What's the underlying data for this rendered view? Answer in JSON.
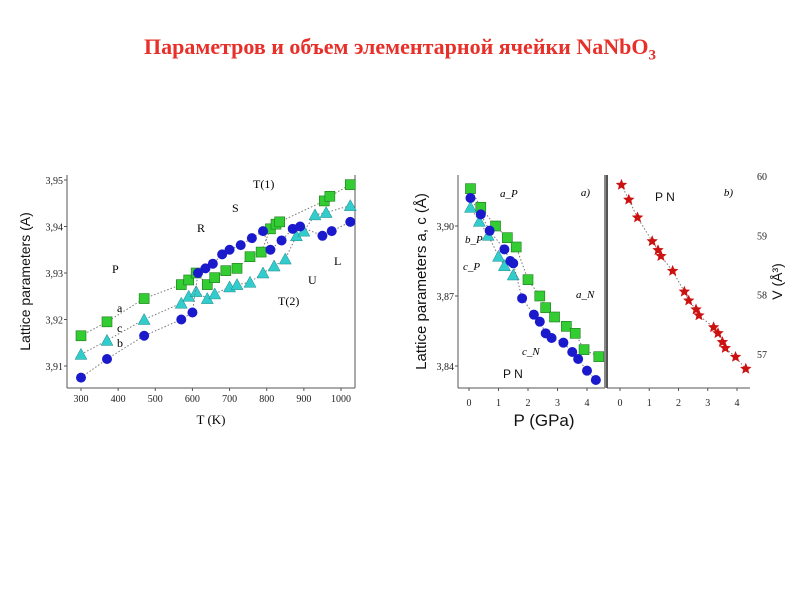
{
  "title": "Параметров и объем элементарной ячейки NaNbO",
  "title_sub": "3",
  "chart_data": [
    {
      "type": "scatter",
      "xlabel": "T   (K)",
      "ylabel": "Lattice parameters (A)",
      "xlim": [
        270,
        1040
      ],
      "ylim": [
        3.905,
        3.952
      ],
      "xticks": [
        "300",
        "400",
        "500",
        "600",
        "700",
        "800",
        "900",
        "1000"
      ],
      "yticks": [
        "3,91",
        "3,92",
        "3,93",
        "3,94",
        "3,95"
      ],
      "annotations": [
        "T(1)",
        "S",
        "R",
        "P",
        "L",
        "U",
        "T(2)",
        "a",
        "c",
        "b"
      ],
      "series": [
        {
          "name": "a",
          "marker": "square",
          "color": "#33cc33",
          "points": [
            [
              300,
              3.9165
            ],
            [
              370,
              3.9195
            ],
            [
              470,
              3.9245
            ],
            [
              570,
              3.9275
            ],
            [
              590,
              3.9285
            ],
            [
              610,
              3.93
            ],
            [
              640,
              3.9275
            ],
            [
              660,
              3.929
            ],
            [
              690,
              3.9305
            ],
            [
              720,
              3.931
            ],
            [
              755,
              3.9335
            ],
            [
              785,
              3.9345
            ],
            [
              810,
              3.9395
            ],
            [
              825,
              3.9405
            ],
            [
              835,
              3.941
            ],
            [
              955,
              3.9455
            ],
            [
              970,
              3.9465
            ],
            [
              1025,
              3.949
            ]
          ]
        },
        {
          "name": "c",
          "marker": "triangle",
          "color": "#33cccc",
          "points": [
            [
              300,
              3.9125
            ],
            [
              370,
              3.9155
            ],
            [
              470,
              3.92
            ],
            [
              570,
              3.9235
            ],
            [
              590,
              3.925
            ],
            [
              610,
              3.926
            ],
            [
              640,
              3.9245
            ],
            [
              660,
              3.9255
            ],
            [
              700,
              3.927
            ],
            [
              720,
              3.9275
            ],
            [
              755,
              3.928
            ],
            [
              790,
              3.93
            ],
            [
              820,
              3.9315
            ],
            [
              850,
              3.933
            ],
            [
              880,
              3.938
            ],
            [
              900,
              3.939
            ],
            [
              930,
              3.9425
            ],
            [
              960,
              3.943
            ],
            [
              1025,
              3.9445
            ]
          ]
        },
        {
          "name": "b",
          "marker": "circle",
          "color": "#1a1acc",
          "points": [
            [
              300,
              3.9075
            ],
            [
              370,
              3.9115
            ],
            [
              470,
              3.9165
            ],
            [
              570,
              3.92
            ],
            [
              600,
              3.9215
            ],
            [
              615,
              3.93
            ],
            [
              635,
              3.931
            ],
            [
              655,
              3.932
            ],
            [
              680,
              3.934
            ],
            [
              700,
              3.935
            ],
            [
              730,
              3.936
            ],
            [
              760,
              3.9375
            ],
            [
              790,
              3.939
            ],
            [
              810,
              3.935
            ],
            [
              840,
              3.937
            ],
            [
              870,
              3.9395
            ],
            [
              890,
              3.94
            ],
            [
              950,
              3.938
            ],
            [
              975,
              3.939
            ],
            [
              1025,
              3.941
            ]
          ]
        }
      ]
    },
    {
      "type": "scatter",
      "panel": "a)",
      "xlabel": "P (GPa)",
      "ylabel": "Lattice parameters a, c (Å)",
      "xlim": [
        -0.4,
        4.6
      ],
      "ylim": [
        3.829,
        3.921
      ],
      "xticks": [
        "0",
        "1",
        "2",
        "3",
        "4"
      ],
      "yticks": [
        "3,84",
        "3,87",
        "3,90"
      ],
      "annotations": [
        "a_P",
        "b_P",
        "c_P",
        "a_N",
        "c_N",
        "P   N"
      ],
      "series": [
        {
          "name": "a",
          "marker": "square",
          "color": "#33cc33",
          "points": [
            [
              0.05,
              3.916
            ],
            [
              0.4,
              3.908
            ],
            [
              0.9,
              3.9
            ],
            [
              1.3,
              3.895
            ],
            [
              1.6,
              3.891
            ],
            [
              2.0,
              3.877
            ],
            [
              2.4,
              3.87
            ],
            [
              2.6,
              3.865
            ],
            [
              2.9,
              3.861
            ],
            [
              3.3,
              3.857
            ],
            [
              3.6,
              3.854
            ],
            [
              3.9,
              3.847
            ],
            [
              4.4,
              3.844
            ]
          ]
        },
        {
          "name": "c",
          "marker": "triangle",
          "color": "#33cccc",
          "points": [
            [
              0.05,
              3.908
            ],
            [
              0.35,
              3.902
            ],
            [
              0.65,
              3.896
            ],
            [
              1.0,
              3.887
            ],
            [
              1.2,
              3.883
            ],
            [
              1.5,
              3.879
            ]
          ]
        },
        {
          "name": "b",
          "marker": "circle",
          "color": "#1a1acc",
          "points": [
            [
              0.05,
              3.912
            ],
            [
              0.4,
              3.905
            ],
            [
              0.7,
              3.898
            ],
            [
              1.2,
              3.89
            ],
            [
              1.4,
              3.885
            ],
            [
              1.5,
              3.884
            ],
            [
              1.8,
              3.869
            ],
            [
              2.2,
              3.862
            ],
            [
              2.4,
              3.859
            ],
            [
              2.6,
              3.854
            ],
            [
              2.8,
              3.852
            ],
            [
              3.2,
              3.85
            ],
            [
              3.5,
              3.846
            ],
            [
              3.7,
              3.843
            ],
            [
              4.0,
              3.838
            ],
            [
              4.3,
              3.834
            ]
          ]
        }
      ]
    },
    {
      "type": "scatter",
      "panel": "b)",
      "xlabel": "",
      "ylabel": "V (Å³)",
      "xlim": [
        -0.4,
        4.6
      ],
      "ylim": [
        56.45,
        60.05
      ],
      "xticks": [
        "0",
        "1",
        "2",
        "3",
        "4"
      ],
      "yticks": [
        "57",
        "58",
        "59",
        "60"
      ],
      "annotations": [
        "P   N"
      ],
      "series": [
        {
          "name": "V",
          "marker": "star",
          "color": "#cc1111",
          "points": [
            [
              0.05,
              59.85
            ],
            [
              0.3,
              59.6
            ],
            [
              0.6,
              59.3
            ],
            [
              1.1,
              58.9
            ],
            [
              1.3,
              58.75
            ],
            [
              1.4,
              58.65
            ],
            [
              1.8,
              58.4
            ],
            [
              2.2,
              58.05
            ],
            [
              2.35,
              57.9
            ],
            [
              2.6,
              57.75
            ],
            [
              2.7,
              57.65
            ],
            [
              3.2,
              57.45
            ],
            [
              3.35,
              57.35
            ],
            [
              3.5,
              57.2
            ],
            [
              3.6,
              57.1
            ],
            [
              3.95,
              56.95
            ],
            [
              4.3,
              56.75
            ]
          ]
        }
      ]
    }
  ]
}
